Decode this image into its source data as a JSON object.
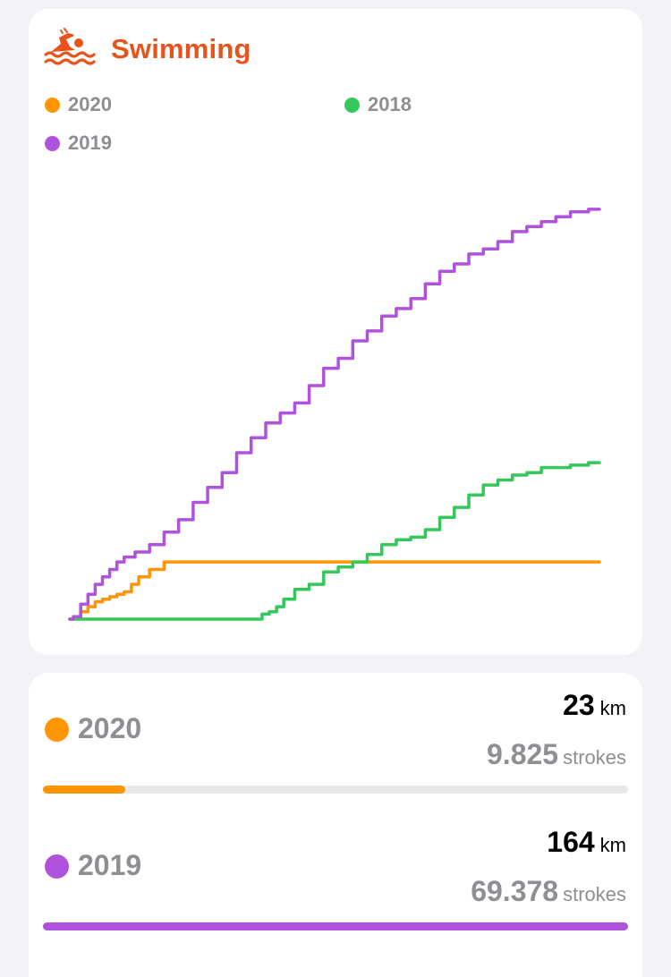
{
  "header": {
    "title": "Swimming",
    "icon": "swimmer-icon",
    "accent": "#e8531c"
  },
  "legend": [
    {
      "label": "2020",
      "color": "#ff9500"
    },
    {
      "label": "2018",
      "color": "#34c759"
    },
    {
      "label": "2019",
      "color": "#af52de"
    }
  ],
  "chart_data": {
    "type": "line",
    "title": "",
    "xlabel": "",
    "ylabel": "",
    "xlim": [
      0,
      365
    ],
    "ylim": [
      0,
      170
    ],
    "grid": false,
    "series": [
      {
        "name": "2020",
        "color": "#ff9500",
        "points": [
          [
            0,
            0
          ],
          [
            5,
            1
          ],
          [
            10,
            3
          ],
          [
            15,
            5
          ],
          [
            20,
            7
          ],
          [
            25,
            8
          ],
          [
            30,
            9
          ],
          [
            35,
            10
          ],
          [
            40,
            11
          ],
          [
            45,
            14
          ],
          [
            50,
            17
          ],
          [
            60,
            20
          ],
          [
            70,
            23
          ],
          [
            100,
            23
          ],
          [
            150,
            23
          ],
          [
            200,
            23
          ],
          [
            250,
            23
          ],
          [
            300,
            23
          ],
          [
            365,
            23
          ]
        ]
      },
      {
        "name": "2018",
        "color": "#34c759",
        "points": [
          [
            0,
            0
          ],
          [
            50,
            0
          ],
          [
            100,
            0
          ],
          [
            130,
            0
          ],
          [
            135,
            2
          ],
          [
            140,
            3
          ],
          [
            145,
            5
          ],
          [
            150,
            8
          ],
          [
            160,
            12
          ],
          [
            170,
            14
          ],
          [
            180,
            19
          ],
          [
            190,
            21
          ],
          [
            200,
            23
          ],
          [
            210,
            26
          ],
          [
            220,
            30
          ],
          [
            230,
            32
          ],
          [
            240,
            33
          ],
          [
            250,
            36
          ],
          [
            260,
            41
          ],
          [
            270,
            45
          ],
          [
            280,
            50
          ],
          [
            290,
            54
          ],
          [
            300,
            56
          ],
          [
            310,
            58
          ],
          [
            320,
            59
          ],
          [
            330,
            61
          ],
          [
            340,
            61
          ],
          [
            350,
            62
          ],
          [
            365,
            63
          ]
        ]
      },
      {
        "name": "2019",
        "color": "#af52de",
        "points": [
          [
            0,
            0
          ],
          [
            5,
            1
          ],
          [
            10,
            6
          ],
          [
            15,
            10
          ],
          [
            20,
            14
          ],
          [
            25,
            17
          ],
          [
            30,
            20
          ],
          [
            35,
            23
          ],
          [
            40,
            25
          ],
          [
            50,
            27
          ],
          [
            60,
            30
          ],
          [
            70,
            35
          ],
          [
            80,
            40
          ],
          [
            90,
            47
          ],
          [
            100,
            53
          ],
          [
            110,
            59
          ],
          [
            120,
            67
          ],
          [
            130,
            73
          ],
          [
            140,
            79
          ],
          [
            150,
            83
          ],
          [
            160,
            87
          ],
          [
            170,
            94
          ],
          [
            180,
            101
          ],
          [
            190,
            105
          ],
          [
            200,
            112
          ],
          [
            210,
            116
          ],
          [
            220,
            122
          ],
          [
            230,
            125
          ],
          [
            240,
            129
          ],
          [
            250,
            135
          ],
          [
            260,
            140
          ],
          [
            270,
            143
          ],
          [
            280,
            147
          ],
          [
            290,
            149
          ],
          [
            300,
            152
          ],
          [
            310,
            156
          ],
          [
            320,
            158
          ],
          [
            330,
            160
          ],
          [
            340,
            162
          ],
          [
            350,
            164
          ],
          [
            365,
            165
          ]
        ]
      }
    ]
  },
  "stats": [
    {
      "year": "2020",
      "color": "#ff9500",
      "km": "23",
      "km_unit": "km",
      "strokes": "9.825",
      "strokes_unit": "strokes",
      "progress": 0.14
    },
    {
      "year": "2019",
      "color": "#af52de",
      "km": "164",
      "km_unit": "km",
      "strokes": "69.378",
      "strokes_unit": "strokes",
      "progress": 1.0
    }
  ]
}
